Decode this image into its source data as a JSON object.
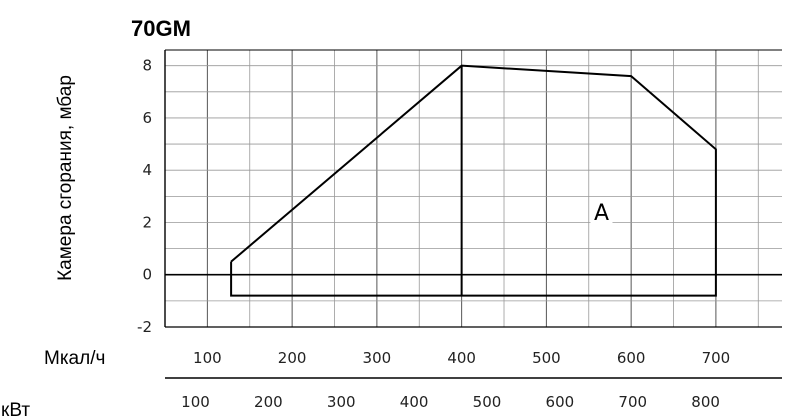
{
  "chart_data": {
    "type": "line",
    "title": "70GM",
    "ylabel": "Камера сгорания, мбар",
    "ylim": [
      -2,
      8.6
    ],
    "yticks": [
      -2,
      0,
      2,
      4,
      6,
      8
    ],
    "y_tick_labels": [
      "-2",
      "0",
      "2",
      "4",
      "6",
      "8"
    ],
    "x_primary": {
      "label": "Мкал/ч",
      "ticks": [
        100,
        200,
        300,
        400,
        500,
        600,
        700
      ],
      "tick_labels": [
        "100",
        "200",
        "300",
        "400",
        "500",
        "600",
        "700"
      ],
      "range": [
        50,
        778
      ]
    },
    "x_secondary": {
      "label": "кВт",
      "ticks": [
        100,
        200,
        300,
        400,
        500,
        600,
        700,
        800
      ],
      "tick_labels": [
        "100",
        "200",
        "300",
        "400",
        "500",
        "600",
        "700",
        "800"
      ]
    },
    "grid": true,
    "series": [
      {
        "x": [
          128,
          400,
          600,
          700,
          700,
          400,
          128,
          128
        ],
        "y": [
          0.5,
          8.0,
          7.6,
          4.8,
          -0.8,
          -0.8,
          -0.8,
          0.5
        ]
      },
      {
        "x": [
          400,
          400
        ],
        "y": [
          8.0,
          -0.8
        ]
      }
    ],
    "annotations": [
      {
        "text": "A",
        "x": 565,
        "y": 2.1
      }
    ]
  }
}
